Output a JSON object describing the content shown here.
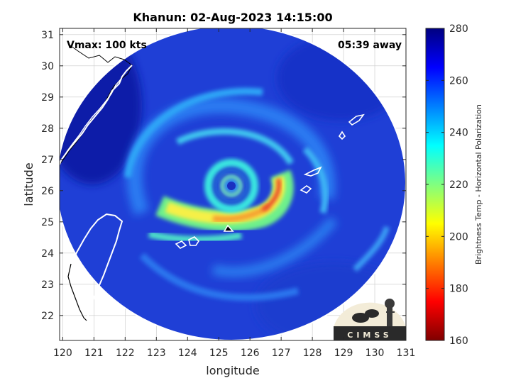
{
  "chart_data": {
    "type": "heatmap",
    "title": "Khanun: 02-Aug-2023 14:15:00",
    "xlabel": "longitude",
    "ylabel": "latitude",
    "xlim": [
      119.9,
      131.0
    ],
    "ylim": [
      21.2,
      31.2
    ],
    "xticks": [
      120,
      121,
      122,
      123,
      124,
      125,
      126,
      127,
      128,
      129,
      130,
      131
    ],
    "yticks": [
      22,
      23,
      24,
      25,
      26,
      27,
      28,
      29,
      30,
      31
    ],
    "grid": true,
    "annotations": {
      "vmax": "Vmax: 100 kts",
      "away": "05:39 away"
    },
    "storm_center": {
      "lon": 125.25,
      "lat": 26.25
    },
    "colorbar": {
      "label": "Brightness Temp - Horizontal Polarization",
      "ticks": [
        160,
        180,
        200,
        220,
        240,
        260,
        280
      ],
      "range": [
        160,
        280
      ],
      "colormap": "jet"
    },
    "logo_text": "CIMSS"
  }
}
